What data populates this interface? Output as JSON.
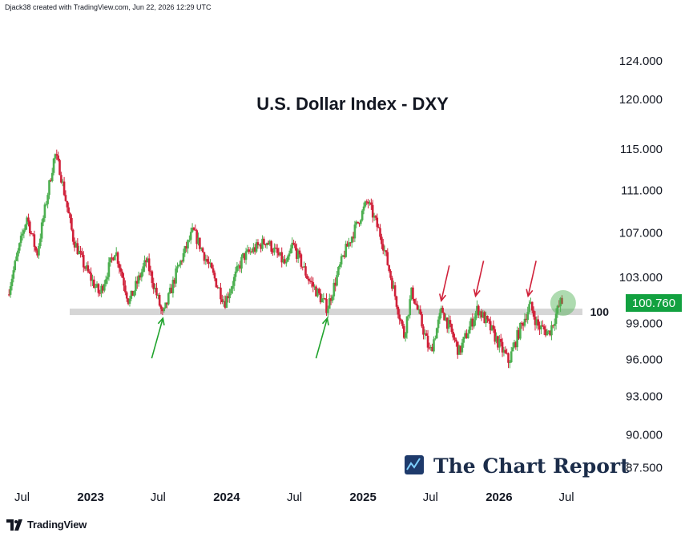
{
  "header": {
    "credit": "Djack38 created with TradingView.com, Jun 22, 2026 12:29 UTC"
  },
  "footer": {
    "tradingview_label": "TradingView"
  },
  "watermark": {
    "text": "The Chart Report"
  },
  "chart_data": {
    "type": "candlestick",
    "title": "U.S. Dollar Index - DXY",
    "y_scale": "log",
    "ylim": [
      86.5,
      128
    ],
    "y_ticks": [
      {
        "value": 124,
        "label": "124.000"
      },
      {
        "value": 120,
        "label": "120.000"
      },
      {
        "value": 115,
        "label": "115.000"
      },
      {
        "value": 111,
        "label": "111.000"
      },
      {
        "value": 107,
        "label": "107.000"
      },
      {
        "value": 103,
        "label": "103.000"
      },
      {
        "value": 99,
        "label": "99.000"
      },
      {
        "value": 96,
        "label": "96.000"
      },
      {
        "value": 93,
        "label": "93.000"
      },
      {
        "value": 90,
        "label": "90.000"
      },
      {
        "value": 87.5,
        "label": "87.500"
      }
    ],
    "x_range": [
      "2022-05-20",
      "2026-08-15"
    ],
    "x_ticks": [
      {
        "date": "2022-07-01",
        "label": "Jul",
        "bold": false
      },
      {
        "date": "2023-01-01",
        "label": "2023",
        "bold": true
      },
      {
        "date": "2023-07-01",
        "label": "Jul",
        "bold": false
      },
      {
        "date": "2024-01-01",
        "label": "2024",
        "bold": true
      },
      {
        "date": "2024-07-01",
        "label": "Jul",
        "bold": false
      },
      {
        "date": "2025-01-01",
        "label": "2025",
        "bold": true
      },
      {
        "date": "2025-07-01",
        "label": "Jul",
        "bold": false
      },
      {
        "date": "2026-01-01",
        "label": "2026",
        "bold": true
      },
      {
        "date": "2026-07-01",
        "label": "Jul",
        "bold": false
      }
    ],
    "price_path": [
      [
        "2022-05-23",
        101.5
      ],
      [
        "2022-06-15",
        104.5
      ],
      [
        "2022-07-14",
        108.5
      ],
      [
        "2022-08-10",
        105.0
      ],
      [
        "2022-09-27",
        114.5
      ],
      [
        "2022-10-10",
        113.0
      ],
      [
        "2022-11-15",
        106.5
      ],
      [
        "2022-12-15",
        104.0
      ],
      [
        "2023-01-25",
        101.5
      ],
      [
        "2023-03-08",
        105.5
      ],
      [
        "2023-04-14",
        100.8
      ],
      [
        "2023-05-31",
        104.5
      ],
      [
        "2023-07-14",
        99.6
      ],
      [
        "2023-08-20",
        103.5
      ],
      [
        "2023-10-03",
        107.2
      ],
      [
        "2023-11-15",
        104.0
      ],
      [
        "2023-12-27",
        100.8
      ],
      [
        "2024-02-14",
        104.8
      ],
      [
        "2024-04-16",
        106.3
      ],
      [
        "2024-06-10",
        104.0
      ],
      [
        "2024-06-26",
        106.0
      ],
      [
        "2024-08-05",
        103.0
      ],
      [
        "2024-09-27",
        100.3
      ],
      [
        "2024-11-10",
        105.0
      ],
      [
        "2025-01-13",
        110.0
      ],
      [
        "2025-02-20",
        106.5
      ],
      [
        "2025-04-21",
        98.0
      ],
      [
        "2025-05-12",
        101.8
      ],
      [
        "2025-06-30",
        96.5
      ],
      [
        "2025-08-01",
        100.2
      ],
      [
        "2025-09-16",
        96.6
      ],
      [
        "2025-11-05",
        100.3
      ],
      [
        "2025-12-05",
        98.8
      ],
      [
        "2026-01-27",
        95.8
      ],
      [
        "2026-02-20",
        98.0
      ],
      [
        "2026-03-25",
        100.6
      ],
      [
        "2026-04-15",
        98.8
      ],
      [
        "2026-05-15",
        98.2
      ],
      [
        "2026-06-15",
        100.8
      ],
      [
        "2026-06-22",
        100.76
      ]
    ],
    "support_level": {
      "value": 100,
      "label": "100",
      "color": "#d6d6d6"
    },
    "last_price": {
      "value": 100.76,
      "label": "100.760",
      "color": "#12a140"
    },
    "colors": {
      "up": "#4caf50",
      "down": "#d0213a",
      "support_arrows": "#1fa32c",
      "resistance_arrows": "#d0213a"
    },
    "annotations": [
      {
        "type": "arrow-up",
        "color": "green",
        "date": "2023-07-14",
        "value": 100
      },
      {
        "type": "arrow-up",
        "color": "green",
        "date": "2024-09-27",
        "value": 100
      },
      {
        "type": "arrow-down",
        "color": "red",
        "date": "2025-07-30",
        "value": 100.4
      },
      {
        "type": "arrow-down",
        "color": "red",
        "date": "2025-10-30",
        "value": 100.8
      },
      {
        "type": "arrow-down",
        "color": "red",
        "date": "2026-03-20",
        "value": 100.8
      },
      {
        "type": "circle",
        "color": "green",
        "date": "2026-06-22",
        "value": 100.76
      }
    ]
  }
}
